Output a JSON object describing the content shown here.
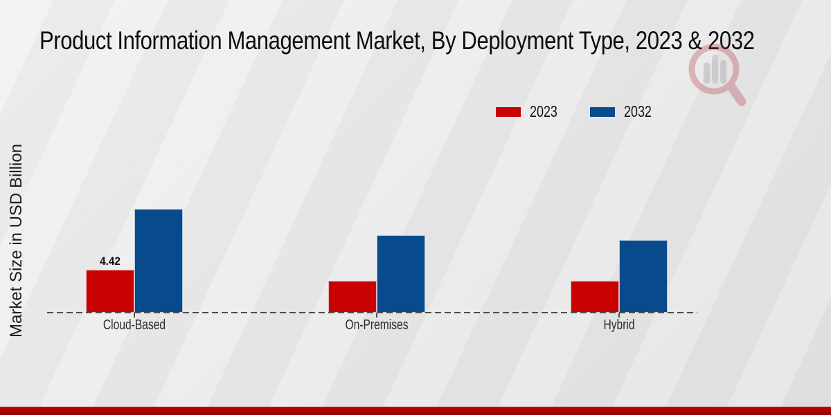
{
  "title": "Product Information Management Market, By Deployment Type, 2023 & 2032",
  "watermark_icon": "magnifier-bar-chart-logo",
  "colors": {
    "series_2023": "#c80101",
    "series_2032": "#084b8c",
    "footer_band": "#c60101",
    "baseline": "#4d4d4d"
  },
  "chart_data": {
    "type": "bar",
    "title": "Product Information Management Market, By Deployment Type, 2023 & 2032",
    "ylabel": "Market Size in USD Billion",
    "xlabel": "",
    "categories": [
      "Cloud-Based",
      "On-Premises",
      "Hybrid"
    ],
    "series": [
      {
        "name": "2023",
        "color": "#c80101",
        "values": [
          4.42,
          3.28,
          3.28
        ]
      },
      {
        "name": "2032",
        "color": "#084b8c",
        "values": [
          10.7,
          8.0,
          7.45
        ]
      }
    ],
    "data_labels": [
      [
        "4.42",
        "",
        ""
      ],
      [
        "",
        "",
        ""
      ]
    ],
    "ylim": [
      0,
      12
    ],
    "grid": false,
    "legend_position": "top-right",
    "baseline_style": "dashed"
  }
}
